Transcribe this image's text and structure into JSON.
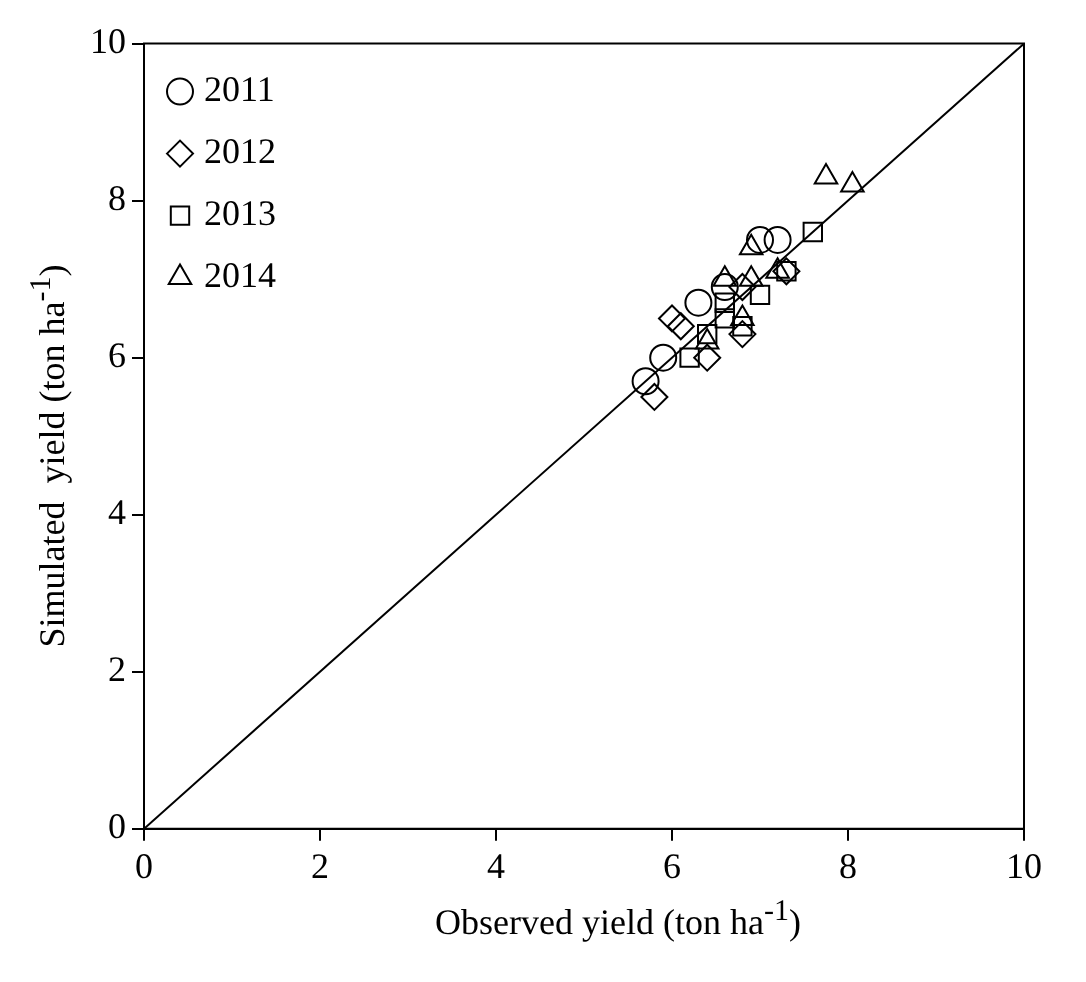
{
  "chart_data": {
    "type": "scatter",
    "xlabel": "Observed yield (ton ha$^{-1}$)",
    "ylabel": "Simulated  yield (ton ha$^{-1}$)",
    "xlim": [
      0,
      10
    ],
    "ylim": [
      0,
      10
    ],
    "xticks": [
      0,
      2,
      4,
      6,
      8,
      10
    ],
    "yticks": [
      0,
      2,
      4,
      6,
      8,
      10
    ],
    "grid": false,
    "legend": "top left",
    "series": [
      {
        "name": "2011",
        "color": "#000000",
        "marker": "circle",
        "x": [
          5.7,
          5.9,
          6.3,
          7.0,
          7.2,
          6.6
        ],
        "values": [
          5.7,
          6.0,
          6.7,
          7.5,
          7.5,
          6.9
        ]
      },
      {
        "name": "2012",
        "color": "#000000",
        "marker": "diamond",
        "x": [
          5.8,
          6.0,
          6.1,
          6.4,
          6.8,
          7.3,
          6.8
        ],
        "values": [
          5.5,
          6.5,
          6.4,
          6.0,
          6.3,
          7.1,
          6.9
        ]
      },
      {
        "name": "2013",
        "color": "#000000",
        "marker": "square",
        "x": [
          7.6,
          6.2,
          6.4,
          6.6,
          6.8,
          7.0,
          7.3,
          6.6
        ],
        "values": [
          7.6,
          6.0,
          6.3,
          6.5,
          6.4,
          6.8,
          7.1,
          6.7
        ]
      },
      {
        "name": "2014",
        "color": "#000000",
        "marker": "triangle",
        "x": [
          7.75,
          8.05,
          6.9,
          6.6,
          6.9,
          7.2,
          6.4,
          6.8
        ],
        "values": [
          8.3,
          8.2,
          7.4,
          7.0,
          7.0,
          7.1,
          6.2,
          6.5
        ]
      },
      {
        "type": "line",
        "color": "#000000",
        "marker": "none",
        "line_style": "solid",
        "x": [
          0,
          10
        ],
        "values": [
          0,
          10
        ]
      }
    ]
  }
}
